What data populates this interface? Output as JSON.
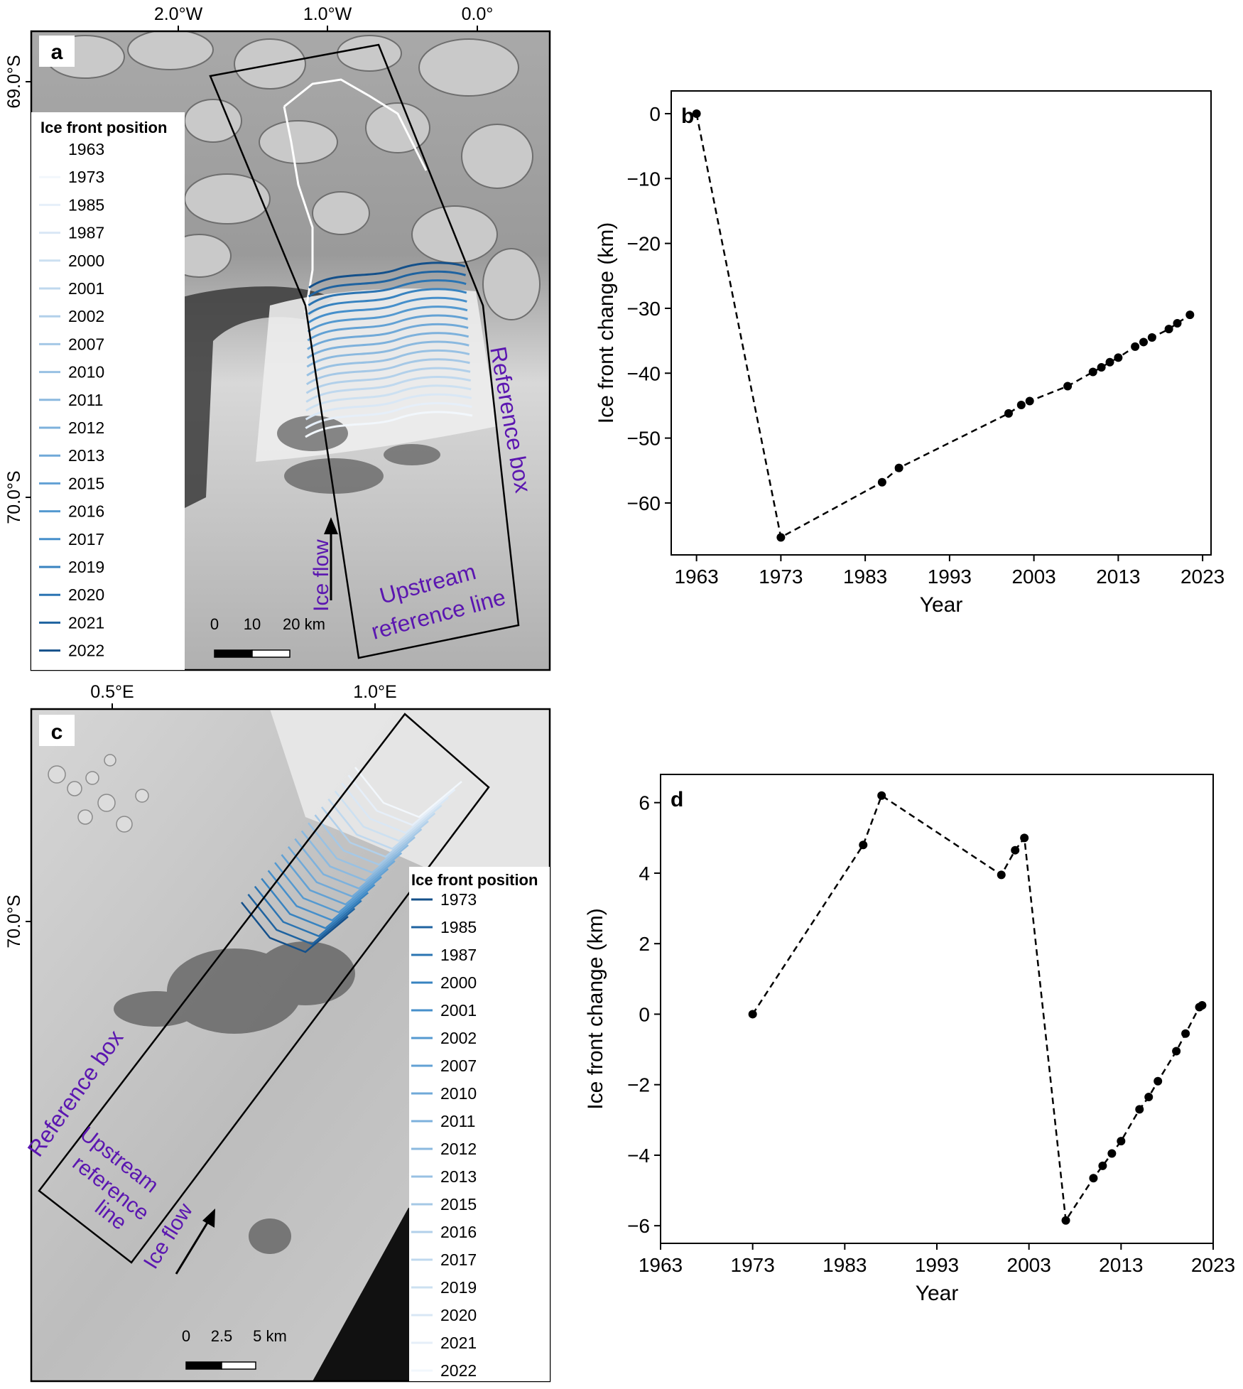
{
  "panel_a": {
    "letter": "a",
    "top_ticks": [
      "2.0°W",
      "1.0°W",
      "0.0°"
    ],
    "left_ticks": [
      "69.0°S",
      "70.0°S"
    ],
    "legend_title": "Ice front position",
    "legend_years": [
      "1963",
      "1973",
      "1985",
      "1987",
      "2000",
      "2001",
      "2002",
      "2007",
      "2010",
      "2011",
      "2012",
      "2013",
      "2015",
      "2016",
      "2017",
      "2019",
      "2020",
      "2021",
      "2022"
    ],
    "box_label": "Reference box",
    "upstream_label_line1": "Upstream",
    "upstream_label_line2": "reference line",
    "flow_label": "Ice flow",
    "scale_labels": [
      "0",
      "10",
      "20 km"
    ]
  },
  "panel_c": {
    "letter": "c",
    "top_ticks": [
      "0.5°E",
      "1.0°E"
    ],
    "left_ticks": [
      "70.0°S"
    ],
    "legend_title": "Ice front position",
    "legend_years": [
      "1973",
      "1985",
      "1987",
      "2000",
      "2001",
      "2002",
      "2007",
      "2010",
      "2011",
      "2012",
      "2013",
      "2015",
      "2016",
      "2017",
      "2019",
      "2020",
      "2021",
      "2022"
    ],
    "box_label": "Reference box",
    "upstream_label_line1": "Upstream",
    "upstream_label_line2": "reference",
    "upstream_label_line3": "line",
    "flow_label": "Ice flow",
    "scale_labels": [
      "0",
      "2.5",
      "5 km"
    ]
  },
  "colors": {
    "legend_ramp": [
      "#ffffff",
      "#f2f7fc",
      "#e6eff9",
      "#d9e7f5",
      "#cce0f1",
      "#bfd8ee",
      "#b2d0ea",
      "#a5c8e6",
      "#98c1e3",
      "#8bb9df",
      "#7db1dc",
      "#70a9d8",
      "#62a1d4",
      "#5499d0",
      "#468fcb",
      "#3883c0",
      "#2b74b2",
      "#1f63a0",
      "#14508a"
    ],
    "label_purple": "#5b16b0",
    "map_bg_a": "#b8b8b8",
    "map_bg_c": "#c4c4c4"
  },
  "chart_data": [
    {
      "panel": "b",
      "type": "line",
      "line_style": "dashed",
      "marker": "circle",
      "xlabel": "Year",
      "ylabel": "Ice front change (km)",
      "xlim": [
        1960,
        2024
      ],
      "ylim": [
        -68,
        3.5
      ],
      "xticks": [
        1963,
        1973,
        1983,
        1993,
        2003,
        2013,
        2023
      ],
      "yticks": [
        0,
        -10,
        -20,
        -30,
        -40,
        -50,
        -60
      ],
      "x": [
        1963,
        1973,
        1985,
        1987,
        2000,
        2001.5,
        2002.5,
        2007,
        2010,
        2011,
        2012,
        2013,
        2015,
        2016,
        2017,
        2019,
        2020,
        2021.5
      ],
      "y": [
        0,
        -65.3,
        -56.8,
        -54.6,
        -46.2,
        -44.9,
        -44.3,
        -42.0,
        -39.8,
        -39.1,
        -38.3,
        -37.6,
        -35.9,
        -35.2,
        -34.5,
        -33.2,
        -32.3,
        -31.0
      ]
    },
    {
      "panel": "d",
      "type": "line",
      "line_style": "dashed",
      "marker": "circle",
      "xlabel": "Year",
      "ylabel": "Ice front change (km)",
      "xlim": [
        1963,
        2023
      ],
      "ylim": [
        -6.5,
        6.8
      ],
      "xticks": [
        1963,
        1973,
        1983,
        1993,
        2003,
        2013,
        2023
      ],
      "yticks": [
        6,
        4,
        2,
        0,
        -2,
        -4,
        -6
      ],
      "x": [
        1973,
        1985,
        1987,
        2000,
        2001.5,
        2002.5,
        2007,
        2010,
        2011,
        2012,
        2013,
        2015,
        2016,
        2017,
        2019,
        2020,
        2021.5,
        2021.8
      ],
      "y": [
        0,
        4.8,
        6.2,
        3.95,
        4.65,
        5.0,
        -5.85,
        -4.65,
        -4.3,
        -3.95,
        -3.6,
        -2.7,
        -2.35,
        -1.9,
        -1.05,
        -0.55,
        0.2,
        0.25
      ]
    }
  ]
}
